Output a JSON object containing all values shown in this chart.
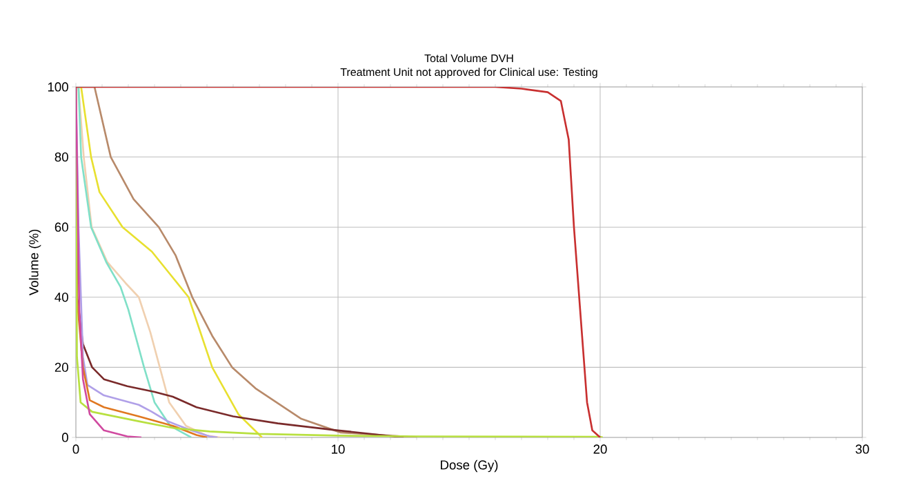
{
  "chart_data": {
    "type": "line",
    "title": "Total Volume DVH",
    "subtitle": "Treatment Unit not approved for Clinical use: Testing",
    "xlabel": "Dose (Gy)",
    "ylabel": "Volume (%)",
    "xlim": [
      0,
      30
    ],
    "ylim": [
      0,
      100
    ],
    "xticks": [
      0,
      10,
      20,
      30
    ],
    "yticks": [
      0,
      20,
      40,
      60,
      80,
      100
    ],
    "grid": true,
    "marker": "none",
    "line_style": "solid",
    "series": [
      {
        "color": "#b88a6a",
        "x": [
          0,
          0.71,
          1.33,
          2.2,
          3.16,
          3.8,
          4.44,
          5.2,
          5.96,
          6.85,
          8.6,
          10.1,
          12.2,
          13
        ],
        "values": [
          100,
          100,
          80,
          68,
          60,
          52,
          40,
          29,
          20,
          14,
          5.3,
          1.4,
          0.4,
          0
        ]
      },
      {
        "color": "#e8e030",
        "x": [
          0,
          0.2,
          0.58,
          0.9,
          1.78,
          2.9,
          3.6,
          4.3,
          5.2,
          6.2,
          7.1
        ],
        "values": [
          100,
          100,
          80,
          70,
          60,
          53,
          46.5,
          40,
          20,
          6.6,
          0
        ]
      },
      {
        "color": "#f0d0b0",
        "x": [
          0,
          0.1,
          0.3,
          0.6,
          1.2,
          1.9,
          2.4,
          2.84,
          3.2,
          3.56,
          4.2,
          5,
          5.5
        ],
        "values": [
          100,
          100,
          80,
          60,
          50,
          44,
          40,
          30,
          20,
          10,
          3.3,
          0.5,
          0
        ]
      },
      {
        "color": "#80e0c8",
        "x": [
          0,
          0.1,
          0.2,
          0.58,
          1.16,
          1.7,
          2.0,
          2.6,
          3.0,
          3.6,
          4.4
        ],
        "values": [
          100,
          100,
          80,
          60,
          50,
          43,
          36.5,
          20,
          10,
          3.3,
          0
        ]
      },
      {
        "color": "#7a2a2a",
        "x": [
          0,
          0.05,
          0.27,
          0.62,
          1.07,
          1.96,
          3.0,
          3.7,
          4.6,
          6.0,
          7.7,
          10,
          12.5
        ],
        "values": [
          100,
          40,
          26.6,
          20,
          16.6,
          14.6,
          13,
          11.6,
          8.6,
          6,
          4,
          2,
          0
        ]
      },
      {
        "color": "#b0a0e8",
        "x": [
          0,
          0.1,
          0.27,
          0.44,
          1.07,
          2.4,
          2.9,
          3.5,
          4.4,
          5.1,
          5.4
        ],
        "values": [
          100,
          60,
          23,
          15,
          12,
          9.3,
          7.3,
          4.6,
          2,
          0.3,
          0
        ]
      },
      {
        "color": "#e07820",
        "x": [
          0,
          0.04,
          0.27,
          0.53,
          1.07,
          2.4,
          3.7,
          4.6,
          5
        ],
        "values": [
          100,
          40,
          20,
          10.6,
          8.6,
          6,
          3.3,
          0.7,
          0
        ]
      },
      {
        "color": "#b8e040",
        "x": [
          0,
          0.04,
          0.18,
          0.62,
          2.4,
          3.7,
          5.1,
          7,
          10,
          13,
          20,
          20.1
        ],
        "values": [
          100,
          23,
          10,
          7.3,
          4.6,
          2.7,
          1.7,
          1,
          0.5,
          0.3,
          0.2,
          0
        ]
      },
      {
        "color": "#d04aa0",
        "x": [
          0,
          0.13,
          0.27,
          0.53,
          1.07,
          1.96,
          2.5
        ],
        "values": [
          100,
          36.5,
          16.6,
          6.6,
          2,
          0.3,
          0
        ]
      },
      {
        "color": "#c83030",
        "x": [
          0,
          16,
          17,
          18,
          18.5,
          18.8,
          19,
          19.3,
          19.5,
          19.7,
          20
        ],
        "values": [
          100,
          100,
          99.5,
          98.5,
          96,
          85,
          60,
          30,
          10,
          2,
          0
        ]
      }
    ]
  }
}
